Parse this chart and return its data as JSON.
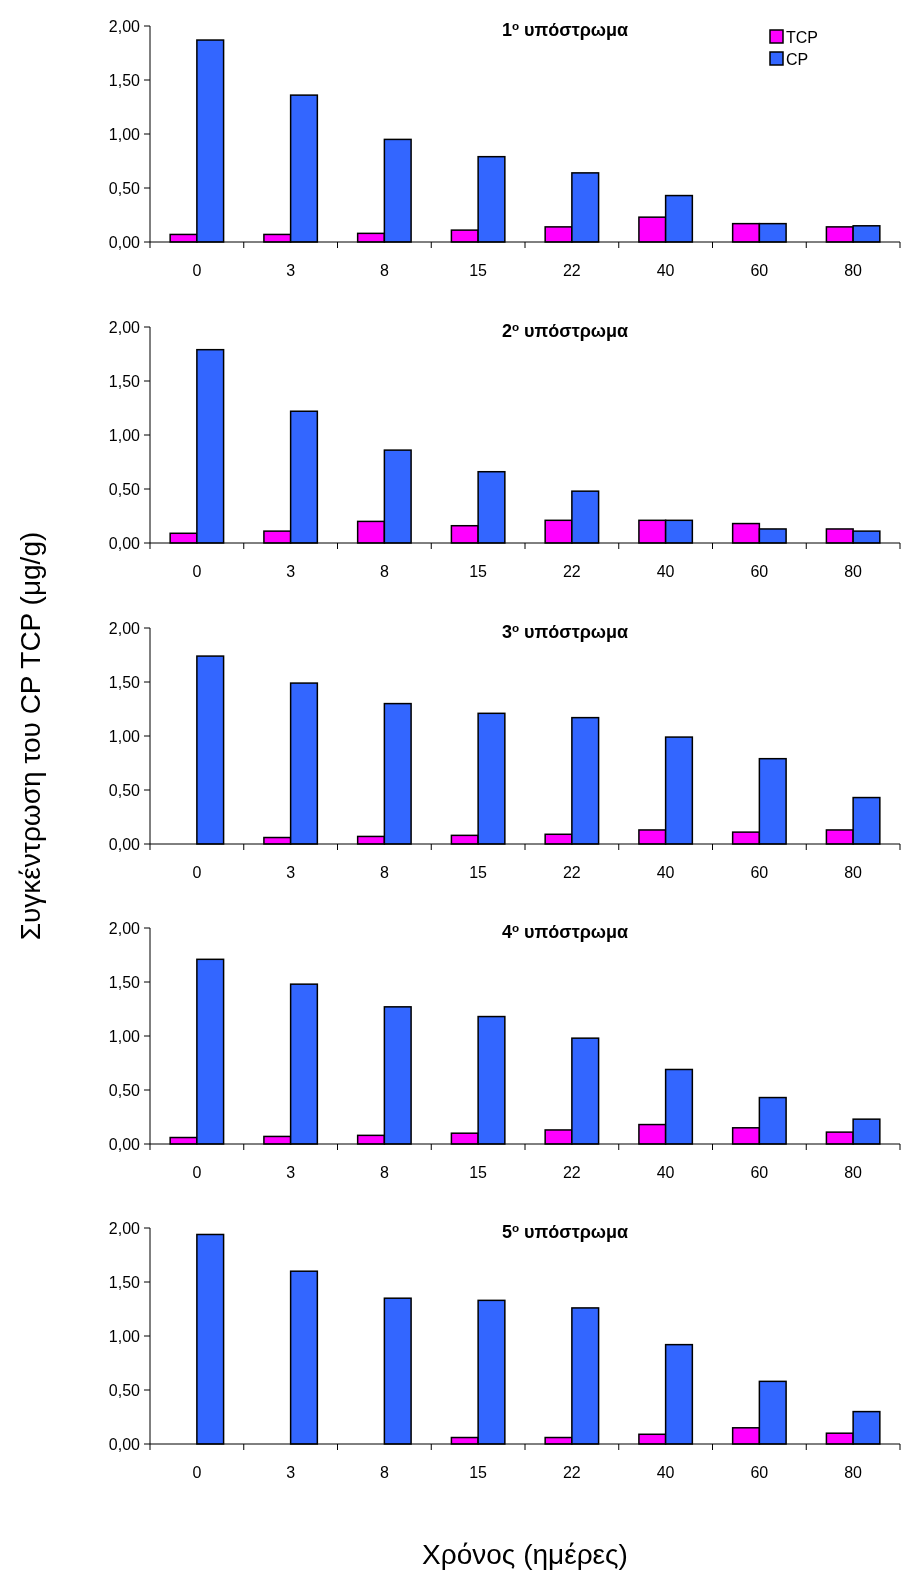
{
  "chart_data": [
    {
      "type": "bar",
      "title": "1$^{o}$ υπόστρωμα",
      "categories": [
        "0",
        "3",
        "8",
        "15",
        "22",
        "40",
        "60",
        "80"
      ],
      "series": [
        {
          "name": "TCP",
          "color": "#ff00ff",
          "values": [
            0.07,
            0.07,
            0.08,
            0.11,
            0.14,
            0.23,
            0.17,
            0.14
          ]
        },
        {
          "name": "CP",
          "color": "#3366ff",
          "values": [
            1.87,
            1.36,
            0.95,
            0.79,
            0.64,
            0.43,
            0.17,
            0.15
          ]
        }
      ],
      "ylim": [
        0,
        2
      ],
      "yticks": [
        {
          "value": 0,
          "label": "0,00"
        },
        {
          "value": 0.5,
          "label": "0,50"
        },
        {
          "value": 1,
          "label": "1,00"
        },
        {
          "value": 1.5,
          "label": "1,50"
        },
        {
          "value": 2,
          "label": "2,00"
        }
      ],
      "grid": false,
      "legend": "top right"
    },
    {
      "type": "bar",
      "title": "2$^{o}$ υπόστρωμα",
      "categories": [
        "0",
        "3",
        "8",
        "15",
        "22",
        "40",
        "60",
        "80"
      ],
      "series": [
        {
          "color": "#ff00ff",
          "values": [
            0.09,
            0.11,
            0.2,
            0.16,
            0.21,
            0.21,
            0.18,
            0.13
          ]
        },
        {
          "color": "#3366ff",
          "values": [
            1.79,
            1.22,
            0.86,
            0.66,
            0.48,
            0.21,
            0.13,
            0.11
          ]
        }
      ],
      "ylim": [
        0,
        2
      ],
      "yticks": [
        {
          "value": 0,
          "label": "0,00"
        },
        {
          "value": 0.5,
          "label": "0,50"
        },
        {
          "value": 1,
          "label": "1,00"
        },
        {
          "value": 1.5,
          "label": "1,50"
        },
        {
          "value": 2,
          "label": "2,00"
        }
      ],
      "grid": false,
      "legend": false
    },
    {
      "type": "bar",
      "title": "3$^{o}$ υπόστρωμα",
      "ylabel": "Συγκέντρωση του CP  TCP  (μg/g)",
      "categories": [
        "0",
        "3",
        "8",
        "15",
        "22",
        "40",
        "60",
        "80"
      ],
      "series": [
        {
          "color": "#ff00ff",
          "values": [
            null,
            0.06,
            0.07,
            0.08,
            0.09,
            0.13,
            0.11,
            0.13
          ]
        },
        {
          "color": "#3366ff",
          "values": [
            1.74,
            1.49,
            1.3,
            1.21,
            1.17,
            0.99,
            0.79,
            0.43
          ]
        }
      ],
      "ylim": [
        0,
        2
      ],
      "yticks": [
        {
          "value": 0,
          "label": "0,00"
        },
        {
          "value": 0.5,
          "label": "0,50"
        },
        {
          "value": 1,
          "label": "1,00"
        },
        {
          "value": 1.5,
          "label": "1,50"
        },
        {
          "value": 2,
          "label": "2,00"
        }
      ],
      "grid": false,
      "legend": false
    },
    {
      "type": "bar",
      "title": "4$^{o}$ υπόστρωμα",
      "categories": [
        "0",
        "3",
        "8",
        "15",
        "22",
        "40",
        "60",
        "80"
      ],
      "series": [
        {
          "color": "#ff00ff",
          "values": [
            0.06,
            0.07,
            0.08,
            0.1,
            0.13,
            0.18,
            0.15,
            0.11
          ]
        },
        {
          "color": "#3366ff",
          "values": [
            1.71,
            1.48,
            1.27,
            1.18,
            0.98,
            0.69,
            0.43,
            0.23
          ]
        }
      ],
      "ylim": [
        0,
        2
      ],
      "yticks": [
        {
          "value": 0,
          "label": "0,00"
        },
        {
          "value": 0.5,
          "label": "0,50"
        },
        {
          "value": 1,
          "label": "1,00"
        },
        {
          "value": 1.5,
          "label": "1,50"
        },
        {
          "value": 2,
          "label": "2,00"
        }
      ],
      "grid": false,
      "legend": false
    },
    {
      "type": "bar",
      "title": "5$^{o}$ υπόστρωμα",
      "xlabel": "Χρόνος (ημέρες)",
      "categories": [
        "0",
        "3",
        "8",
        "15",
        "22",
        "40",
        "60",
        "80"
      ],
      "series": [
        {
          "color": "#ff00ff",
          "values": [
            null,
            null,
            null,
            0.06,
            0.06,
            0.09,
            0.15,
            0.1
          ]
        },
        {
          "color": "#3366ff",
          "values": [
            1.94,
            1.6,
            1.35,
            1.33,
            1.26,
            0.92,
            0.58,
            0.3
          ]
        }
      ],
      "ylim": [
        0,
        2
      ],
      "yticks": [
        {
          "value": 0,
          "label": "0,00"
        },
        {
          "value": 0.5,
          "label": "0,50"
        },
        {
          "value": 1,
          "label": "1,00"
        },
        {
          "value": 1.5,
          "label": "1,50"
        },
        {
          "value": 2,
          "label": "2,00"
        }
      ],
      "grid": false,
      "legend": false
    }
  ]
}
